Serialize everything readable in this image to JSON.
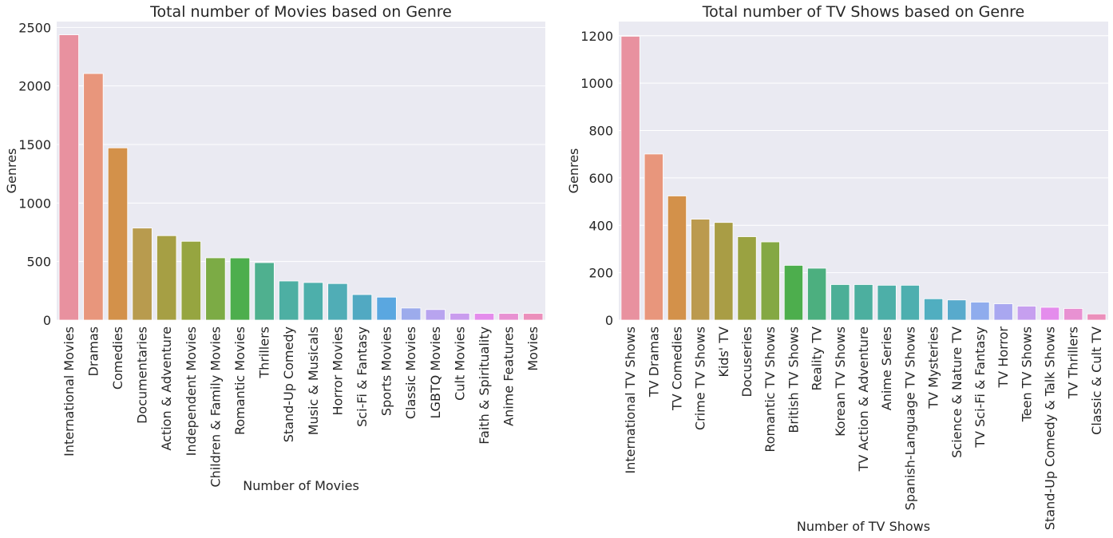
{
  "chart_data": [
    {
      "type": "bar",
      "title": "Total number of Movies based on Genre",
      "xlabel": "Number of Movies",
      "ylabel": "Genres",
      "ylim": [
        0,
        2550
      ],
      "yticks": [
        0,
        500,
        1000,
        1500,
        2000,
        2500
      ],
      "grid": true,
      "categories": [
        "International Movies",
        "Dramas",
        "Comedies",
        "Documentaries",
        "Action & Adventure",
        "Independent Movies",
        "Children & Family Movies",
        "Romantic Movies",
        "Thrillers",
        "Stand-Up Comedy",
        "Music & Musicals",
        "Horror Movies",
        "Sci-Fi & Fantasy",
        "Sports Movies",
        "Classic Movies",
        "LGBTQ Movies",
        "Cult Movies",
        "Faith & Spirituality",
        "Anime Features",
        "Movies"
      ],
      "values": [
        2437,
        2106,
        1471,
        786,
        721,
        673,
        532,
        531,
        491,
        334,
        321,
        312,
        218,
        196,
        103,
        90,
        59,
        57,
        57,
        57
      ],
      "colors": [
        "#e8919f",
        "#e8967c",
        "#d3914a",
        "#b89b4e",
        "#a69f44",
        "#96a540",
        "#7cab45",
        "#4dae4d",
        "#4fb08f",
        "#4dafa3",
        "#4dafab",
        "#50adb6",
        "#51a9c2",
        "#5aa7e0",
        "#9cabec",
        "#b8a4ef",
        "#c99cee",
        "#e48cec",
        "#e891d2",
        "#eb8fbb"
      ]
    },
    {
      "type": "bar",
      "title": "Total number of TV Shows based on Genre",
      "xlabel": "Number of TV Shows",
      "ylabel": "Genres",
      "ylim": [
        0,
        1260
      ],
      "yticks": [
        0,
        200,
        400,
        600,
        800,
        1000,
        1200
      ],
      "grid": true,
      "categories": [
        "International TV Shows",
        "TV Dramas",
        "TV Comedies",
        "Crime TV Shows",
        "Kids' TV",
        "Docuseries",
        "Romantic TV Shows",
        "British TV Shows",
        "Reality TV",
        "Korean TV Shows",
        "TV Action & Adventure",
        "Anime Series",
        "Spanish-Language TV Shows",
        "TV Mysteries",
        "Science & Nature TV",
        "TV Sci-Fi & Fantasy",
        "TV Horror",
        "Teen TV Shows",
        "Stand-Up Comedy & Talk Shows",
        "TV Thrillers",
        "Classic & Cult TV"
      ],
      "values": [
        1198,
        701,
        524,
        426,
        412,
        352,
        330,
        231,
        219,
        150,
        150,
        147,
        147,
        90,
        85,
        76,
        69,
        59,
        54,
        49,
        26
      ],
      "colors": [
        "#e8919f",
        "#e8967c",
        "#d3914a",
        "#bb9a4e",
        "#a99d45",
        "#9aa241",
        "#84a843",
        "#4dae4d",
        "#4caf7f",
        "#4caf97",
        "#4caf9f",
        "#4dafa8",
        "#4dafaf",
        "#50aec0",
        "#58aacc",
        "#8faced",
        "#a9a7f0",
        "#c69fef",
        "#e48cec",
        "#e891d2",
        "#eb8fbb"
      ]
    }
  ]
}
